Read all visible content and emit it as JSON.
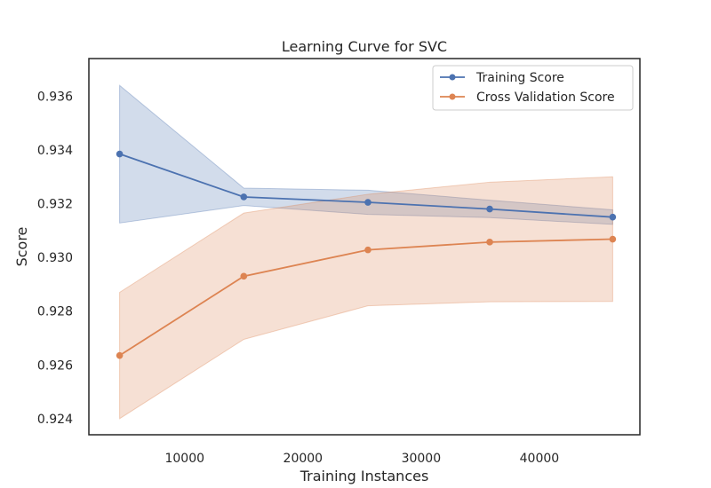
{
  "chart_data": {
    "type": "line",
    "title": "Learning Curve for SVC",
    "xlabel": "Training Instances",
    "ylabel": "Score",
    "xlim": [
      1900,
      48500
    ],
    "ylim": [
      0.9234,
      0.9374
    ],
    "x_ticks": [
      10000,
      20000,
      30000,
      40000
    ],
    "y_ticks": [
      0.924,
      0.926,
      0.928,
      0.93,
      0.932,
      0.934,
      0.936
    ],
    "x_tick_labels": [
      "10000",
      "20000",
      "30000",
      "40000"
    ],
    "y_tick_labels": [
      "0.924",
      "0.926",
      "0.928",
      "0.930",
      "0.932",
      "0.934",
      "0.936"
    ],
    "grid": false,
    "legend_position": "top-right",
    "x": [
      4500,
      15000,
      25500,
      35800,
      46200
    ],
    "series": [
      {
        "name": "Training Score",
        "color": "#4c72b0",
        "values": [
          0.93385,
          0.93225,
          0.93205,
          0.9318,
          0.9315
        ],
        "upper": [
          0.9364,
          0.93258,
          0.9325,
          0.93213,
          0.93177
        ],
        "lower": [
          0.93128,
          0.93193,
          0.9316,
          0.93148,
          0.93123
        ]
      },
      {
        "name": "Cross Validation Score",
        "color": "#dd8452",
        "values": [
          0.92635,
          0.9293,
          0.93028,
          0.93057,
          0.93068
        ],
        "upper": [
          0.9287,
          0.93165,
          0.93235,
          0.9328,
          0.933
        ],
        "lower": [
          0.924,
          0.92695,
          0.9282,
          0.92835,
          0.92836
        ]
      }
    ]
  }
}
